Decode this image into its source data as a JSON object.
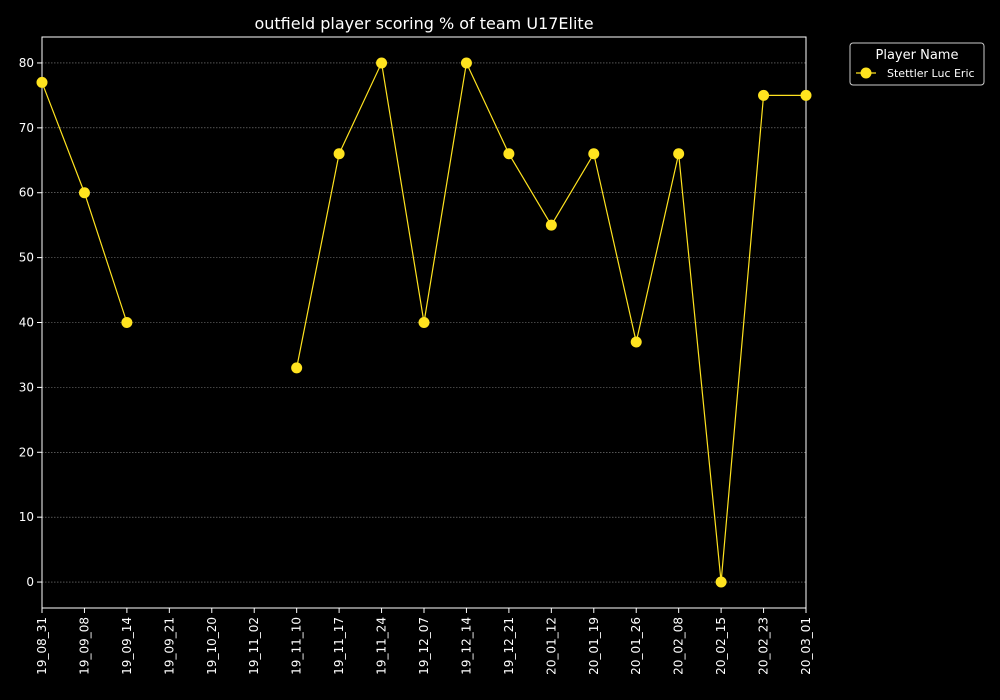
{
  "chart_data": {
    "type": "line",
    "title": "outfield player scoring % of team U17Elite",
    "xlabel": "",
    "ylabel": "",
    "categories": [
      "19_08_31",
      "19_09_08",
      "19_09_14",
      "19_09_21",
      "19_10_20",
      "19_11_02",
      "19_11_10",
      "19_11_17",
      "19_11_24",
      "19_12_07",
      "19_12_14",
      "19_12_21",
      "20_01_12",
      "20_01_19",
      "20_01_26",
      "20_02_08",
      "20_02_15",
      "20_02_23",
      "20_03_01"
    ],
    "series": [
      {
        "name": "Stettler Luc Eric",
        "color": "#ffe31f",
        "values": [
          77,
          60,
          40,
          null,
          null,
          null,
          33,
          66,
          80,
          40,
          80,
          66,
          55,
          66,
          37,
          66,
          0,
          75,
          75
        ]
      }
    ],
    "ylim": [
      -4,
      84
    ],
    "yticks": [
      0,
      10,
      20,
      30,
      40,
      50,
      60,
      70,
      80
    ],
    "grid": true,
    "legend": {
      "title": "Player Name",
      "placement": "top-right outside"
    },
    "colors": {
      "background": "#000000",
      "axes": "#ffffff",
      "grid": "#888888"
    }
  }
}
